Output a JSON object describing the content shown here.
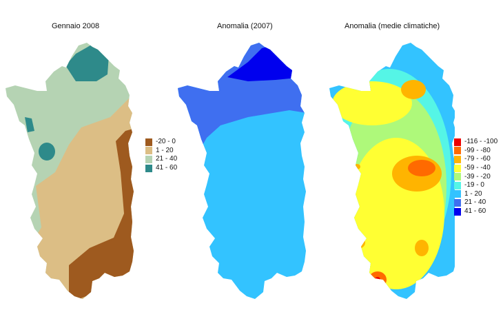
{
  "figure": {
    "maps": [
      {
        "title": "Gennaio 2008",
        "legend": [
          {
            "label": "-20 - 0",
            "color": "#9e5a1f"
          },
          {
            "label": "1 - 20",
            "color": "#dcbe85"
          },
          {
            "label": "21 - 40",
            "color": "#b5d3b3"
          },
          {
            "label": "41 - 60",
            "color": "#2e8a8a"
          }
        ]
      },
      {
        "title": "Anomalia (2007)",
        "colors": {
          "north": "#0000ee",
          "band": "#3f6ff0",
          "main": "#33c3ff"
        }
      },
      {
        "title": "Anomalia (medie climatiche)",
        "legend": [
          {
            "label": "-116 - -100",
            "color": "#ee0000"
          },
          {
            "label": "-99 - -80",
            "color": "#ff6a00"
          },
          {
            "label": "-79 - -60",
            "color": "#ffb400"
          },
          {
            "label": "-59 - -40",
            "color": "#ffff33"
          },
          {
            "label": "-39 - -20",
            "color": "#aef97a"
          },
          {
            "label": "-19 - 0",
            "color": "#55f5e6"
          },
          {
            "label": "1 - 20",
            "color": "#33c3ff"
          },
          {
            "label": "21 - 40",
            "color": "#3f6ff0"
          },
          {
            "label": "41 - 60",
            "color": "#0000ee"
          }
        ]
      }
    ]
  }
}
